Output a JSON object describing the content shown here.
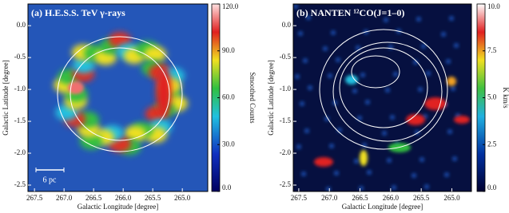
{
  "chart_data": [
    {
      "type": "image",
      "title": "(a) H.E.S.S. TeV γ-rays",
      "x_label": "Galactic Longitude [degree]",
      "y_label": "Galactic Latitude [degree]",
      "xlim": [
        267.61,
        264.57
      ],
      "xticks": [
        267.5,
        {
          "value": 267,
          "label": "267.0"
        },
        266.5,
        {
          "value": 266,
          "label": "266.0"
        },
        265.5,
        {
          "value": 265,
          "label": "265.0"
        }
      ],
      "ylim": [
        -2.6,
        0.34
      ],
      "yticks": [
        {
          "value": 0,
          "label": "0.0"
        },
        -0.5,
        {
          "value": -1,
          "label": "-1.0"
        },
        -1.5,
        {
          "value": -2,
          "label": "-2.0"
        },
        -2.5
      ],
      "colorbar_label": "Smoothed Counts",
      "clim": [
        0,
        120
      ],
      "cticks": [
        {
          "value": 0,
          "label": "0.0"
        },
        {
          "value": 30,
          "label": "30.0"
        },
        {
          "value": 60,
          "label": "60.0"
        },
        {
          "value": 90,
          "label": "90.0"
        },
        {
          "value": 120,
          "label": "120.0"
        }
      ],
      "annotation": "6 pc"
    },
    {
      "type": "image",
      "title": "(b) NANTEN ¹²CO(J=1–0)",
      "x_label": "Galactic Longitude [degree]",
      "y_label": "Galactic Latitude [degree]",
      "xlim": [
        267.59,
        264.68
      ],
      "xticks": [
        267.5,
        {
          "value": 267,
          "label": "267.0"
        },
        266.5,
        {
          "value": 266,
          "label": "266.0"
        },
        265.5,
        {
          "value": 265,
          "label": "265.0"
        }
      ],
      "ylim": [
        -2.6,
        0.34
      ],
      "yticks": [
        {
          "value": 0,
          "label": "0.0"
        },
        -0.5,
        {
          "value": -1,
          "label": "-1.0"
        },
        -1.5,
        {
          "value": -2,
          "label": "-2.0"
        },
        -2.5
      ],
      "colorbar_label": "K km/s",
      "clim": [
        0,
        10
      ],
      "cticks": [
        {
          "value": 0,
          "label": "0.0"
        },
        2.5,
        {
          "value": 5,
          "label": "5.0"
        },
        7.5,
        {
          "value": 10,
          "label": "10.0"
        }
      ]
    }
  ]
}
